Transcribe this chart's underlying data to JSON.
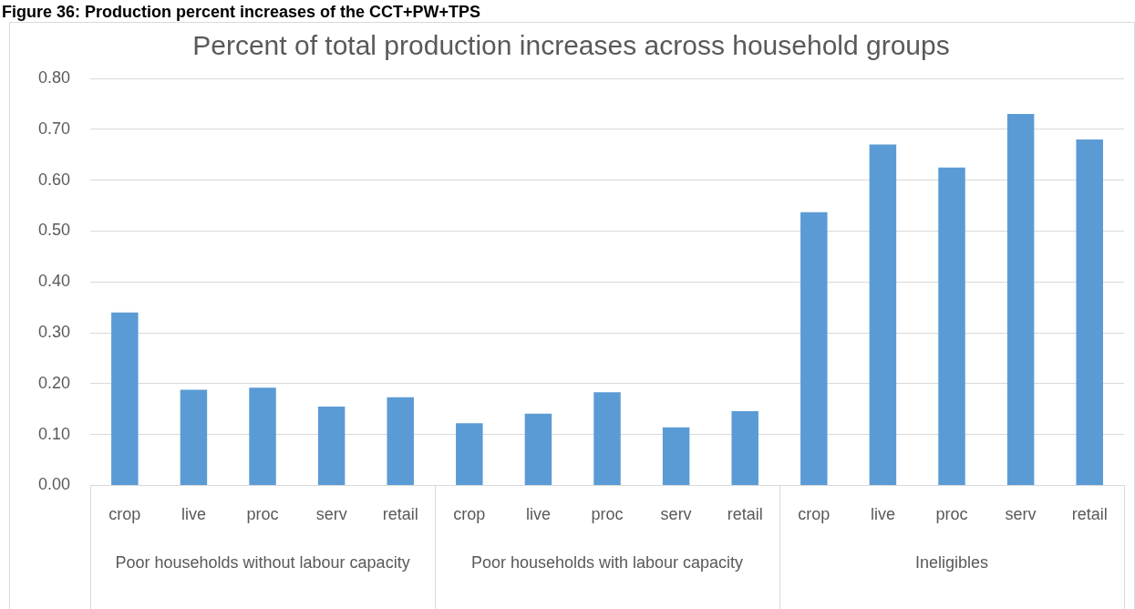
{
  "chart_data": {
    "type": "bar",
    "title": "Percent of total production increases across household groups",
    "categories": [
      "crop",
      "live",
      "proc",
      "serv",
      "retail",
      "crop",
      "live",
      "proc",
      "serv",
      "retail",
      "crop",
      "live",
      "proc",
      "serv",
      "retail"
    ],
    "values": [
      0.34,
      0.188,
      0.192,
      0.155,
      0.173,
      0.122,
      0.141,
      0.183,
      0.114,
      0.146,
      0.537,
      0.67,
      0.625,
      0.73,
      0.68
    ],
    "color": "#5b9bd5",
    "ylim": [
      0,
      0.8
    ],
    "yticks": [
      {
        "value": 0,
        "label": "0.00"
      },
      {
        "value": 0.1,
        "label": "0.10"
      },
      {
        "value": 0.2,
        "label": "0.20"
      },
      {
        "value": 0.3,
        "label": "0.30"
      },
      {
        "value": 0.4,
        "label": "0.40"
      },
      {
        "value": 0.5,
        "label": "0.50"
      },
      {
        "value": 0.6,
        "label": "0.60"
      },
      {
        "value": 0.7,
        "label": "0.70"
      },
      {
        "value": 0.8,
        "label": "0.80"
      }
    ],
    "grid": "y",
    "legend": false,
    "annotations": [
      "Figure 36: Production percent increases of the CCT+PW+TPS",
      "Poor households without labour capacity",
      "Poor households with labour capacity",
      "Ineligibles"
    ]
  }
}
